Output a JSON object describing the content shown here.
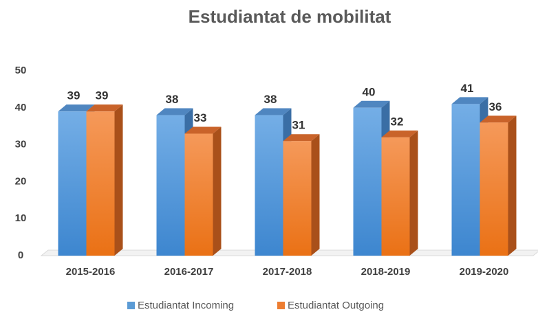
{
  "chart_data": {
    "type": "bar3d",
    "title": "Estudiantat de mobilitat",
    "categories": [
      "2015-2016",
      "2016-2017",
      "2017-2018",
      "2018-2019",
      "2019-2020"
    ],
    "series": [
      {
        "name": "Estudiantat Incoming",
        "color": "#5b9bd5",
        "values": [
          39,
          38,
          38,
          40,
          41
        ]
      },
      {
        "name": "Estudiantat Outgoing",
        "color": "#ed7d31",
        "values": [
          39,
          33,
          31,
          32,
          36
        ]
      }
    ],
    "ylim": [
      0,
      50
    ],
    "yticks": [
      0,
      10,
      20,
      30,
      40,
      50
    ],
    "legend": "bottom"
  }
}
